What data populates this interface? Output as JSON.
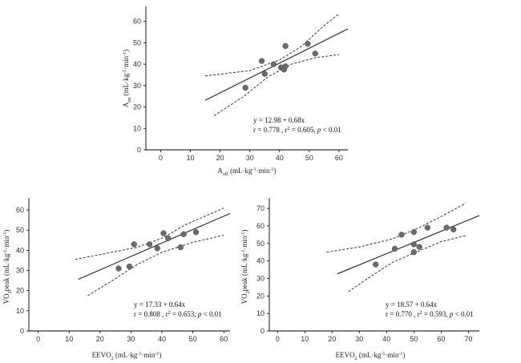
{
  "chart_data": [
    {
      "id": "top",
      "type": "scatter",
      "xlabel_main": "A",
      "xlabel_sub": "off",
      "xlabel_rest": " (mL·kg",
      "xlabel_sup": "-1",
      "xlabel_mid": "·min",
      "xlabel_sup2": "-1",
      "xlabel_end": ")",
      "ylabel_main": "A",
      "ylabel_sub": "on",
      "ylabel_rest": " (mL·kg",
      "ylabel_sup": "-1",
      "ylabel_mid": "·min",
      "ylabel_sup2": "-1",
      "ylabel_end": ")",
      "xlim": [
        -5,
        63
      ],
      "ylim": [
        0,
        67
      ],
      "xticks": [
        0,
        10,
        20,
        30,
        40,
        50,
        60
      ],
      "yticks": [
        0,
        10,
        20,
        30,
        40,
        50,
        60
      ],
      "points": [
        [
          28.5,
          29
        ],
        [
          34,
          41.5
        ],
        [
          35,
          35.5
        ],
        [
          38,
          40
        ],
        [
          40.5,
          38.5
        ],
        [
          41.5,
          37.5
        ],
        [
          42,
          39
        ],
        [
          42,
          48.5
        ],
        [
          49.5,
          49.5
        ],
        [
          52,
          45
        ]
      ],
      "fit": {
        "intercept": 12.98,
        "slope": 0.68,
        "x_range": [
          15,
          64
        ]
      },
      "ci_upper": [
        [
          15,
          34.5
        ],
        [
          30,
          37
        ],
        [
          40,
          42
        ],
        [
          47,
          48
        ],
        [
          55,
          58
        ],
        [
          60,
          63.5
        ]
      ],
      "ci_lower": [
        [
          18,
          16
        ],
        [
          28,
          25
        ],
        [
          36,
          34
        ],
        [
          44,
          40
        ],
        [
          52,
          43
        ],
        [
          60,
          44.5
        ]
      ],
      "stat_line1": "y = 12.98 + 0.68x",
      "stat_line2_a": "r = 0.778 , r",
      "stat_line2_sup": "2",
      "stat_line2_b": " = 0.605, ",
      "stat_line2_p": "p",
      "stat_line2_c": " < 0.01"
    },
    {
      "id": "bottom-left",
      "type": "scatter",
      "xlabel_main": "EEVO",
      "xlabel_sub": "2",
      "xlabel_rest": " (mL·kg",
      "xlabel_sup": "-1",
      "xlabel_mid": "·min",
      "xlabel_sup2": "-1",
      "xlabel_end": ")",
      "ylabel_main": "VO",
      "ylabel_sub": "2",
      "ylabel_rest": "peak (mL·kg",
      "ylabel_sup": "-1",
      "ylabel_mid": "·min",
      "ylabel_sup2": "-1",
      "ylabel_end": ")",
      "xlim": [
        -3,
        62
      ],
      "ylim": [
        0,
        66
      ],
      "xticks": [
        0,
        10,
        20,
        30,
        40,
        50,
        60
      ],
      "yticks": [
        0,
        10,
        20,
        30,
        40,
        50,
        60
      ],
      "points": [
        [
          26,
          31
        ],
        [
          29.5,
          32
        ],
        [
          31,
          43
        ],
        [
          36,
          43
        ],
        [
          38.5,
          41
        ],
        [
          40.5,
          48.5
        ],
        [
          42,
          46
        ],
        [
          46,
          41.5
        ],
        [
          47,
          48
        ],
        [
          51,
          49
        ]
      ],
      "fit": {
        "intercept": 17.33,
        "slope": 0.64,
        "x_range": [
          13,
          64
        ]
      },
      "ci_upper": [
        [
          12,
          35.5
        ],
        [
          22,
          38.5
        ],
        [
          32,
          41.5
        ],
        [
          40,
          46
        ],
        [
          48,
          53
        ],
        [
          60,
          61
        ]
      ],
      "ci_lower": [
        [
          16,
          17.5
        ],
        [
          24,
          25
        ],
        [
          32,
          33
        ],
        [
          40,
          39
        ],
        [
          50,
          44
        ],
        [
          60,
          47.5
        ]
      ],
      "stat_line1": "y = 17.33 + 0.64x",
      "stat_line2_a": "r = 0.808 , r",
      "stat_line2_sup": "2",
      "stat_line2_b": " = 0.653, ",
      "stat_line2_p": "p",
      "stat_line2_c": " < 0.01"
    },
    {
      "id": "bottom-right",
      "type": "scatter",
      "xlabel_main": "EEVO",
      "xlabel_sub": "2",
      "xlabel_rest": " (mL·kg",
      "xlabel_sup": "-1",
      "xlabel_mid": "·min",
      "xlabel_sup2": "-1",
      "xlabel_end": ")",
      "ylabel_main": "VO",
      "ylabel_sub": "2",
      "ylabel_rest": "peak (mL·kg",
      "ylabel_sup": "-1",
      "ylabel_mid": "·min",
      "ylabel_sup2": "-1",
      "ylabel_end": ")",
      "xlim": [
        -3,
        74
      ],
      "ylim": [
        0,
        76
      ],
      "xticks": [
        0,
        10,
        20,
        30,
        40,
        50,
        60,
        70
      ],
      "yticks": [
        0,
        10,
        20,
        30,
        40,
        50,
        60,
        70
      ],
      "points": [
        [
          36,
          38
        ],
        [
          43,
          47
        ],
        [
          45.5,
          55
        ],
        [
          50,
          56.5
        ],
        [
          50,
          49.5
        ],
        [
          50,
          45
        ],
        [
          52,
          48
        ],
        [
          55,
          59
        ],
        [
          62,
          59
        ],
        [
          64.5,
          58
        ]
      ],
      "fit": {
        "intercept": 18.57,
        "slope": 0.64,
        "x_range": [
          22,
          74
        ]
      },
      "ci_upper": [
        [
          18,
          45
        ],
        [
          30,
          48
        ],
        [
          42,
          52.5
        ],
        [
          52,
          59
        ],
        [
          62,
          67
        ],
        [
          69,
          73
        ]
      ],
      "ci_lower": [
        [
          26,
          22.5
        ],
        [
          34,
          31
        ],
        [
          42,
          39
        ],
        [
          50,
          44.5
        ],
        [
          60,
          51
        ],
        [
          69,
          54.5
        ]
      ],
      "stat_line1": "y = 18.57 + 0.64x",
      "stat_line2_a": "r = 0.770 , r",
      "stat_line2_sup": "2",
      "stat_line2_b": " = 0.593, ",
      "stat_line2_p": "p",
      "stat_line2_c": " < 0.01"
    }
  ]
}
